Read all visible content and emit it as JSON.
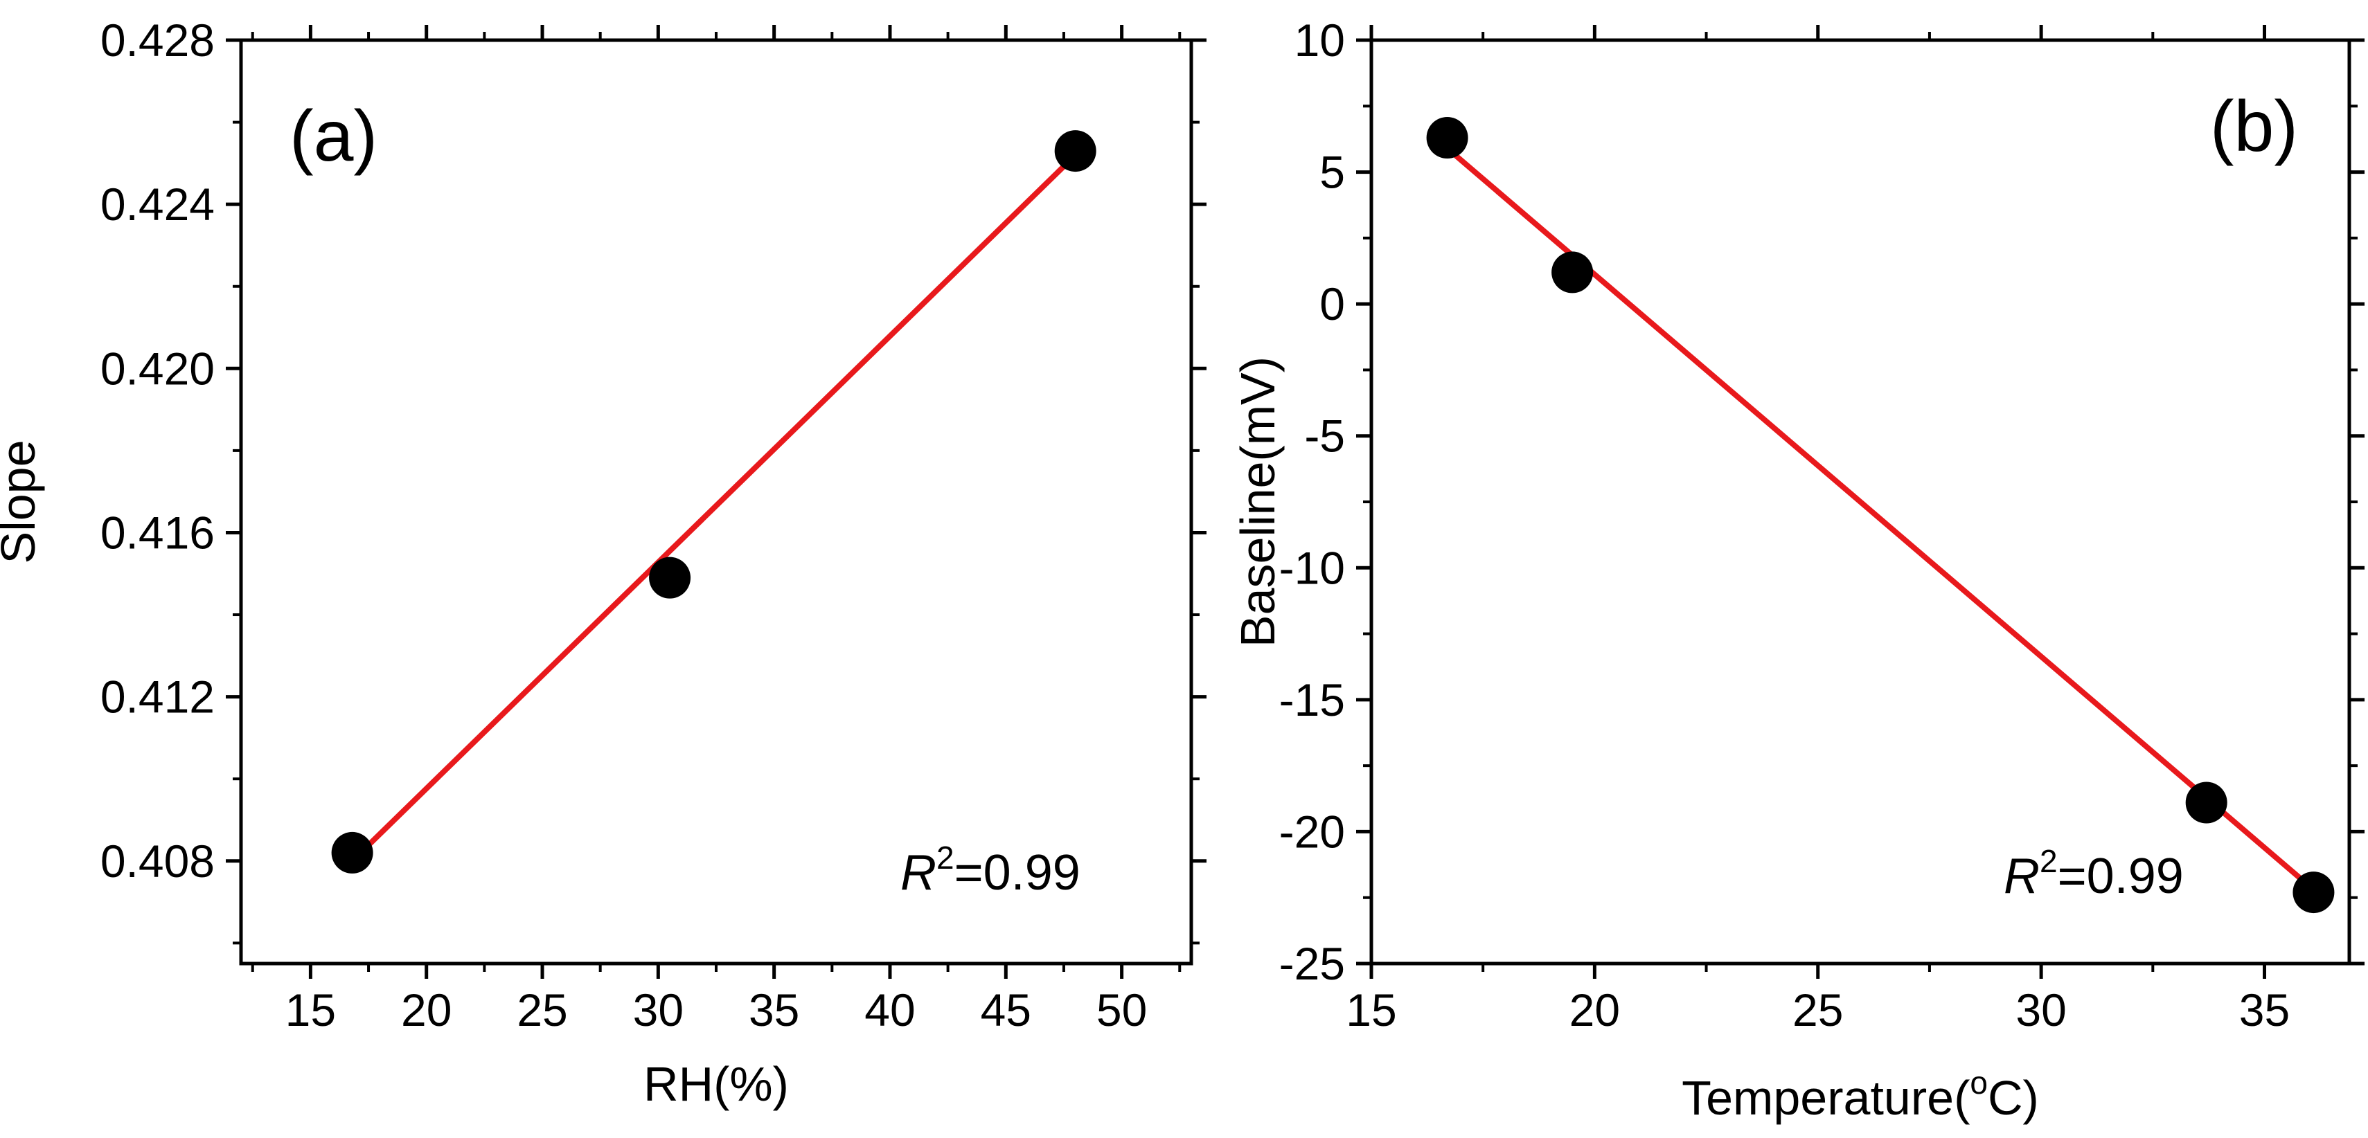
{
  "chart_data": [
    {
      "type": "scatter",
      "panel_label": "(a)",
      "xlabel": "RH(%)",
      "ylabel": "Slope",
      "xlim": [
        12,
        53
      ],
      "ylim": [
        0.4055,
        0.428
      ],
      "xticks": [
        15,
        20,
        25,
        30,
        35,
        40,
        45,
        50
      ],
      "xtick_labels": [
        "15",
        "20",
        "25",
        "30",
        "35",
        "40",
        "45",
        "50"
      ],
      "yticks": [
        0.408,
        0.412,
        0.416,
        0.42,
        0.424,
        0.428
      ],
      "ytick_labels": [
        "0.408",
        "0.412",
        "0.416",
        "0.420",
        "0.424",
        "0.428"
      ],
      "points": [
        {
          "x": 16.8,
          "y": 0.4082
        },
        {
          "x": 30.5,
          "y": 0.4149
        },
        {
          "x": 48.0,
          "y": 0.4253
        }
      ],
      "fit": {
        "x": [
          16.8,
          48.0
        ],
        "y": [
          0.408,
          0.4252
        ],
        "color": "#e8191c"
      },
      "annotation": {
        "r_symbol": "R",
        "superscript": "2",
        "text": "=0.99"
      },
      "grid": false
    },
    {
      "type": "scatter",
      "panel_label": "(b)",
      "xlabel_main": "Temperature(",
      "xlabel_sup": "o",
      "xlabel_end": "C)",
      "ylabel": "Baseline(mV)",
      "xlim": [
        15,
        36.9
      ],
      "ylim": [
        -25,
        10
      ],
      "xticks": [
        15,
        20,
        25,
        30,
        35
      ],
      "xtick_labels": [
        "15",
        "20",
        "25",
        "30",
        "35"
      ],
      "yticks": [
        10,
        5,
        0,
        -5,
        -10,
        -15,
        -20,
        -25
      ],
      "ytick_labels": [
        "10",
        "5",
        "0",
        "-5",
        "-10",
        "-15",
        "-20",
        "-25"
      ],
      "points": [
        {
          "x": 16.7,
          "y": 6.3
        },
        {
          "x": 19.5,
          "y": 1.2
        },
        {
          "x": 33.7,
          "y": -18.9
        },
        {
          "x": 36.1,
          "y": -22.3
        }
      ],
      "fit": {
        "x": [
          16.7,
          36.1
        ],
        "y": [
          5.9,
          -22.2
        ],
        "color": "#e8191c"
      },
      "annotation": {
        "r_symbol": "R",
        "superscript": "2",
        "text": "=0.99"
      },
      "grid": false
    }
  ]
}
